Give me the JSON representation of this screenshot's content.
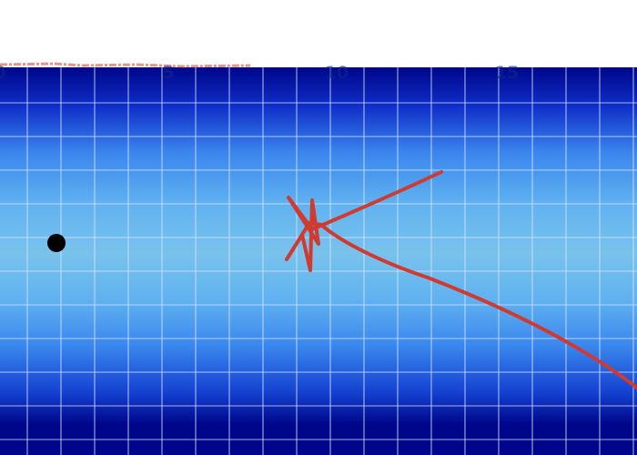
{
  "ruler": {
    "tick_labels": [
      "0",
      "5",
      "10",
      "15"
    ]
  },
  "colors": {
    "band_edge": "#00068a",
    "band_mid": "#4a98f2",
    "band_center": "#73bfec",
    "grid": "#d8e6ff",
    "trail": "#d03a2f",
    "ball": "#000000",
    "tick_text": "#0a2a8c",
    "page": "#ffffff"
  },
  "objects": {
    "ball": "black-dot",
    "path": "red-trajectory-with-star-loop"
  }
}
